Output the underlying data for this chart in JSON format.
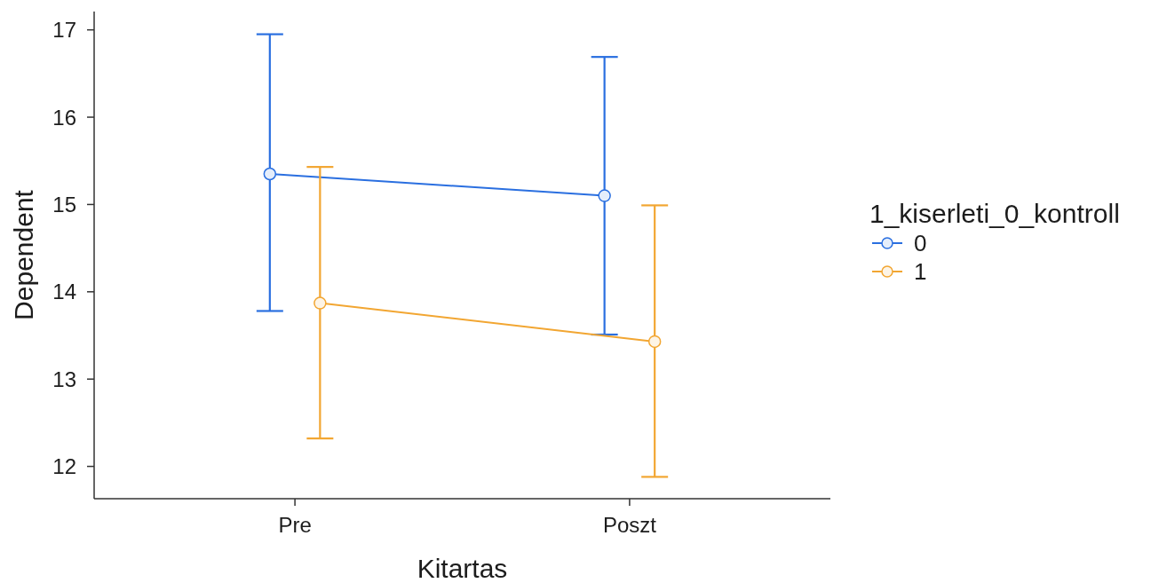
{
  "chart_data": {
    "type": "line",
    "xlabel": "Kitartas",
    "ylabel": "Dependent",
    "legend_title": "1_kiserleti_0_kontroll",
    "categories": [
      "Pre",
      "Poszt"
    ],
    "series": [
      {
        "name": "0",
        "color": "#2a6fe0",
        "values": [
          15.35,
          15.1
        ],
        "errors": [
          [
            13.78,
            16.95
          ],
          [
            13.51,
            16.69
          ]
        ]
      },
      {
        "name": "1",
        "color": "#f2a632",
        "values": [
          13.87,
          13.43
        ],
        "errors": [
          [
            12.32,
            15.43
          ],
          [
            11.88,
            14.99
          ]
        ]
      }
    ],
    "ylim": [
      11.63,
      17.21
    ],
    "yticks": [
      12,
      13,
      14,
      15,
      16,
      17
    ],
    "legend": "right",
    "marker": "circle",
    "line_style": "solid"
  }
}
